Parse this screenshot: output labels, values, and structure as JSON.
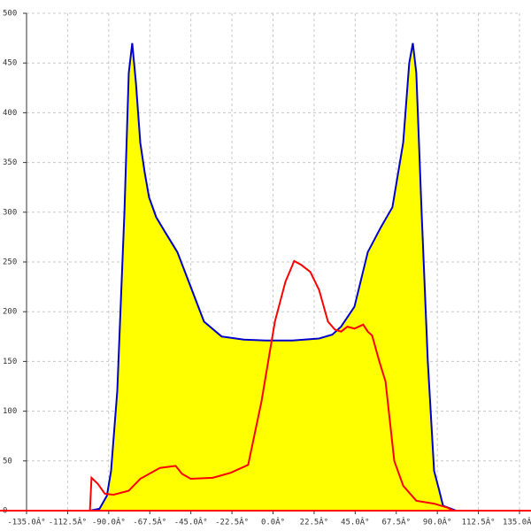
{
  "chart_data": {
    "type": "area",
    "xlim": [
      -135,
      135
    ],
    "ylim": [
      0,
      500
    ],
    "xticks": [
      {
        "value": -135,
        "label": "-135.0Â°"
      },
      {
        "value": -112.5,
        "label": "-112.5Â°"
      },
      {
        "value": -90,
        "label": "-90.0Â°"
      },
      {
        "value": -67.5,
        "label": "-67.5Â°"
      },
      {
        "value": -45,
        "label": "-45.0Â°"
      },
      {
        "value": -22.5,
        "label": "-22.5Â°"
      },
      {
        "value": 0,
        "label": "0.0Â°"
      },
      {
        "value": 22.5,
        "label": "22.5Â°"
      },
      {
        "value": 45,
        "label": "45.0Â°"
      },
      {
        "value": 67.5,
        "label": "67.5Â°"
      },
      {
        "value": 90,
        "label": "90.0Â°"
      },
      {
        "value": 112.5,
        "label": "112.5Â°"
      },
      {
        "value": 135,
        "label": "135.0Â°"
      }
    ],
    "yticks": [
      0,
      50,
      100,
      150,
      200,
      250,
      300,
      350,
      400,
      450,
      500
    ],
    "grid": true,
    "series": [
      {
        "color": "#0000cc",
        "fill": "#ffff00",
        "x": [
          -100.3,
          -95,
          -91,
          -88.7,
          -85.3,
          -81.4,
          -79,
          -77.1,
          -75.1,
          -72.7,
          -70.3,
          -67.9,
          -64,
          -59.1,
          -52.4,
          -45.1,
          -37.8,
          -28.1,
          -16,
          -3.9,
          10.7,
          25.2,
          32.5,
          37.3,
          44.6,
          51.9,
          59.1,
          65.4,
          71.3,
          74.6,
          76.6,
          78.5,
          81.4,
          84.8,
          88.2,
          91.1,
          93.1,
          98.9,
          100.3
        ],
        "values": [
          0,
          2,
          15,
          40,
          120,
          300,
          440,
          470,
          430,
          370,
          340,
          315,
          295,
          280,
          260,
          225,
          190,
          175,
          172,
          171,
          171,
          173,
          177,
          185,
          205,
          260,
          285,
          305,
          370,
          450,
          470,
          440,
          300,
          150,
          40,
          20,
          5,
          1,
          0
        ]
      },
      {
        "color": "#ff0000",
        "x": [
          -100.3,
          -99.4,
          -96,
          -92.1,
          -87.3,
          -79,
          -72.7,
          -62,
          -53.3,
          -49.9,
          -45.1,
          -33,
          -23.3,
          -13.6,
          -6.3,
          1,
          6.8,
          11.6,
          15.5,
          20.4,
          25.2,
          30.1,
          33.9,
          37.3,
          40.7,
          44.6,
          49.4,
          51.9,
          54.3,
          58.2,
          61.6,
          66.4,
          71.3,
          78.5,
          88.2,
          95.5,
          98.9
        ],
        "values": [
          0,
          33,
          27,
          17,
          16,
          20,
          32,
          43,
          45,
          37,
          32,
          33,
          38,
          46,
          110,
          190,
          230,
          251,
          247,
          240,
          222,
          190,
          182,
          180,
          185,
          183,
          187,
          180,
          176,
          150,
          130,
          50,
          25,
          10,
          7,
          3,
          0
        ]
      }
    ]
  }
}
